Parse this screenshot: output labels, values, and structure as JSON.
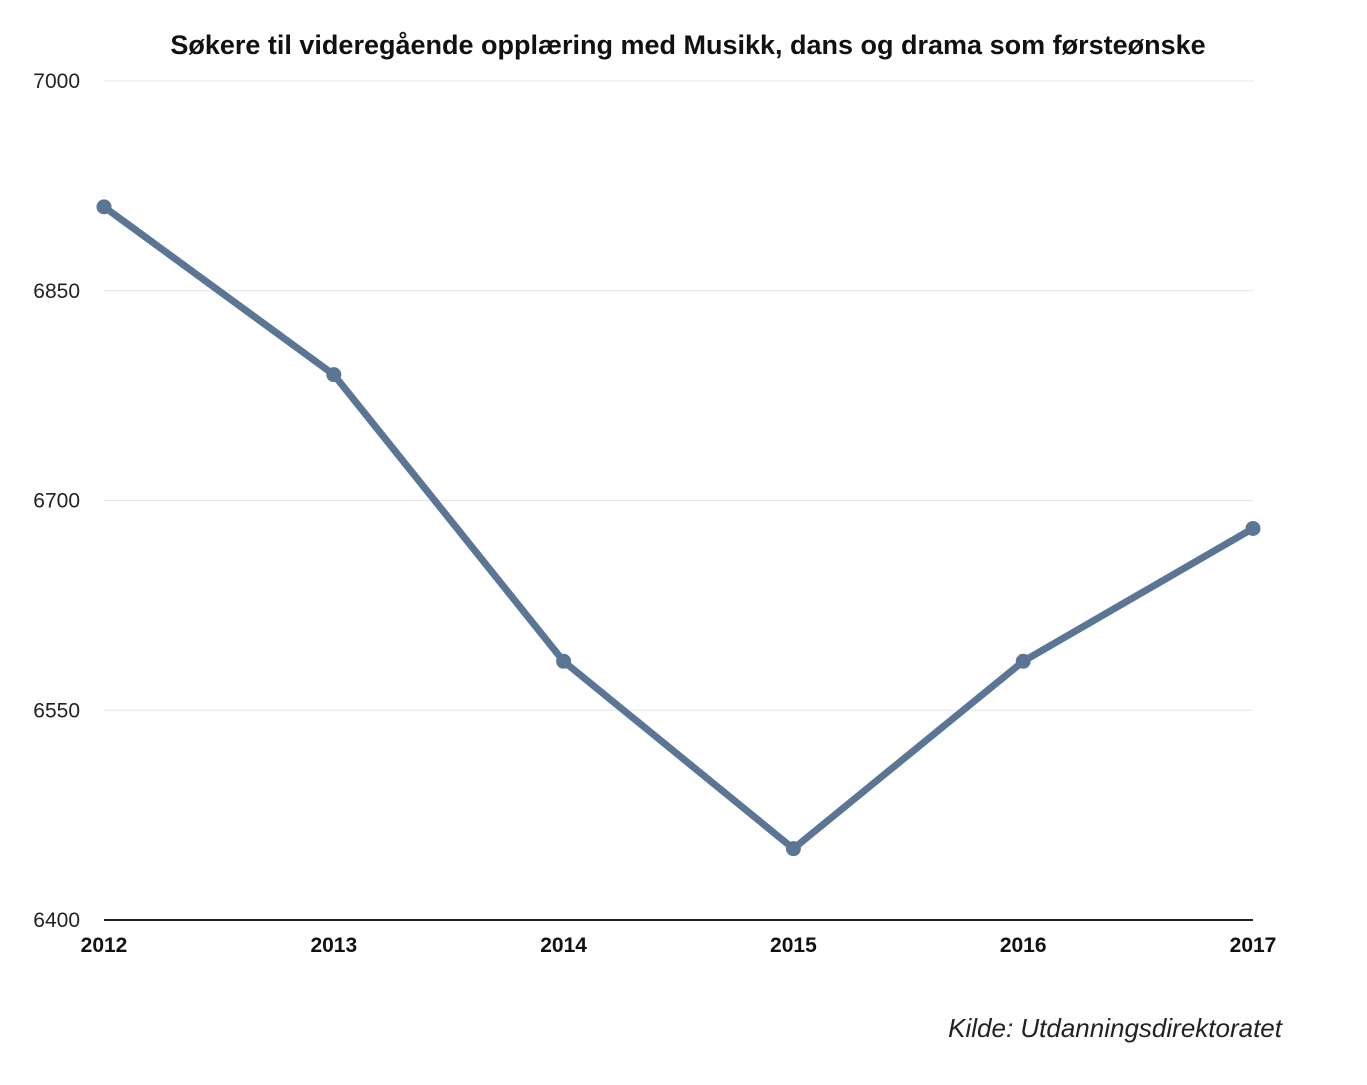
{
  "chart_data": {
    "type": "line",
    "title": "Søkere til videregående opplæring med Musikk, dans og drama som førsteønske",
    "xlabel": "",
    "ylabel": "",
    "categories": [
      "2012",
      "2013",
      "2014",
      "2015",
      "2016",
      "2017"
    ],
    "series": [
      {
        "values": [
          6910,
          6790,
          6585,
          6451,
          6585,
          6680
        ],
        "color": "#5b7694"
      }
    ],
    "ylim": [
      6400,
      7000
    ],
    "yticks": [
      6400,
      6550,
      6700,
      6850,
      7000
    ],
    "grid": true,
    "legend": "none",
    "markers": true,
    "source": "Kilde: Utdanningsdirektoratet"
  }
}
